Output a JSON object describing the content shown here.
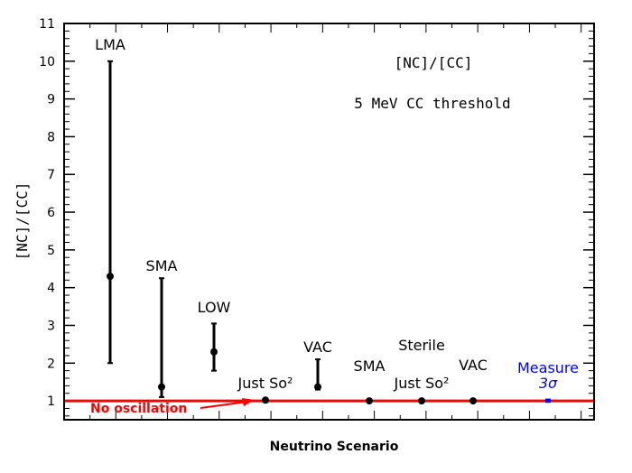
{
  "chart_data": {
    "type": "scatter",
    "title": "[NC]/[CC]",
    "subtitle": "5 MeV CC threshold",
    "xlabel": "Neutrino Scenario",
    "ylabel": "[NC]/[CC]",
    "ylim": [
      0.5,
      11
    ],
    "yticks": [
      "1",
      "2",
      "3",
      "4",
      "5",
      "6",
      "7",
      "8",
      "9",
      "10",
      "11"
    ],
    "points": [
      {
        "label": "LMA",
        "y": 4.3,
        "low": 2.0,
        "high": 10.0
      },
      {
        "label": "SMA",
        "y": 1.37,
        "low": 1.1,
        "high": 4.25
      },
      {
        "label": "LOW",
        "y": 2.3,
        "low": 1.8,
        "high": 3.05
      },
      {
        "label": "Just So²",
        "y": 1.02,
        "low": null,
        "high": null
      },
      {
        "label": "VAC",
        "y": 1.37,
        "low": 1.3,
        "high": 2.1
      },
      {
        "label": "SMA",
        "y": 1.0,
        "low": null,
        "high": null
      },
      {
        "label": "Just So²",
        "y": 1.0,
        "low": null,
        "high": null
      },
      {
        "label": "VAC",
        "y": 1.0,
        "low": null,
        "high": null
      }
    ],
    "group_label": "Sterile",
    "reference_line": {
      "y": 1.0,
      "label": "No oscillation",
      "color": "#ff0000"
    },
    "measurement": {
      "label": "Measure",
      "sublabel": "3σ",
      "y": 1.0,
      "low": 0.95,
      "high": 1.06,
      "color": "#0000ff"
    }
  }
}
